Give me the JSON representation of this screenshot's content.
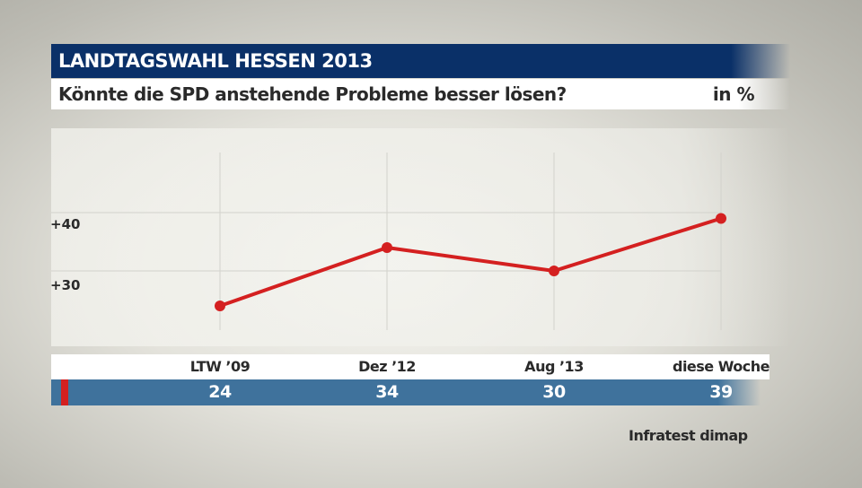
{
  "header": {
    "title": "LANDTAGSWAHL HESSEN 2013",
    "question": "Könnte die SPD anstehende Probleme besser lösen?",
    "unit": "in %"
  },
  "source": "Infratest dimap",
  "chart_data": {
    "type": "line",
    "title": "Könnte die SPD anstehende Probleme besser lösen?",
    "categories": [
      "LTW ’09",
      "Dez ’12",
      "Aug ’13",
      "diese Woche"
    ],
    "values": [
      24,
      34,
      30,
      39
    ],
    "value_labels": [
      "24",
      "34",
      "30",
      "39"
    ],
    "yticks": [
      {
        "value": 30,
        "label": "+30"
      },
      {
        "value": 40,
        "label": "+40"
      }
    ],
    "ylim": [
      17,
      54.5
    ],
    "grid": true,
    "color": "#d42020"
  }
}
